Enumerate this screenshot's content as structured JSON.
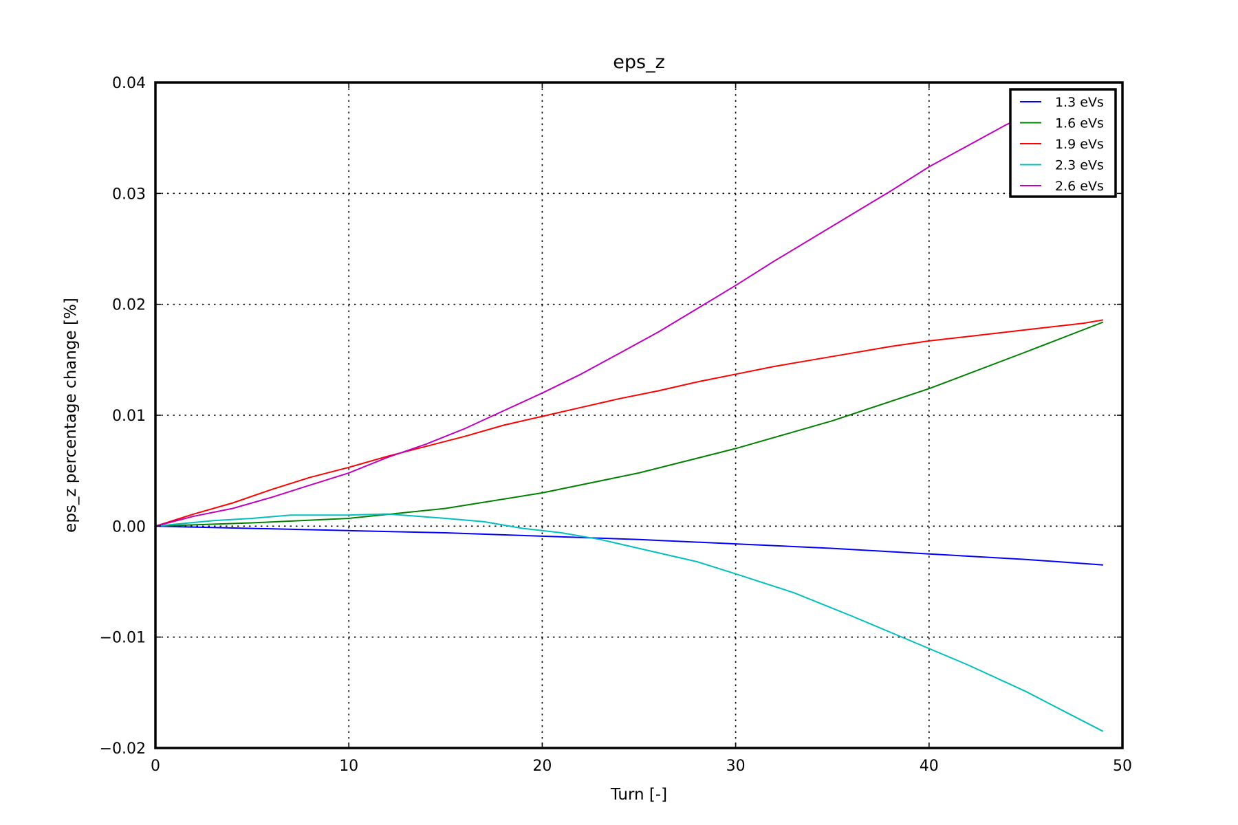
{
  "chart_data": {
    "type": "line",
    "title": "eps_z",
    "xlabel": "Turn [-]",
    "ylabel": "eps_z percentage change [%]",
    "xlim": [
      0,
      50
    ],
    "ylim": [
      -0.02,
      0.04
    ],
    "xticks": [
      0,
      10,
      20,
      30,
      40,
      50
    ],
    "yticks": [
      -0.02,
      -0.01,
      0.0,
      0.01,
      0.02,
      0.03,
      0.04
    ],
    "xtick_labels": [
      "0",
      "10",
      "20",
      "30",
      "40",
      "50"
    ],
    "ytick_labels": [
      "−0.02",
      "−0.01",
      "0.00",
      "0.01",
      "0.02",
      "0.03",
      "0.04"
    ],
    "grid": true,
    "legend_position": "top-right",
    "series": [
      {
        "name": "1.3 eVs",
        "color": "#0000ff",
        "x": [
          0,
          5,
          10,
          15,
          20,
          25,
          30,
          35,
          40,
          45,
          49
        ],
        "y": [
          0,
          -0.0002,
          -0.0004,
          -0.0006,
          -0.0009,
          -0.0012,
          -0.0016,
          -0.002,
          -0.0025,
          -0.003,
          -0.0035
        ]
      },
      {
        "name": "1.6 eVs",
        "color": "#008000",
        "x": [
          0,
          5,
          10,
          15,
          20,
          25,
          30,
          35,
          40,
          45,
          49
        ],
        "y": [
          0,
          0.0003,
          0.0007,
          0.0016,
          0.003,
          0.0048,
          0.007,
          0.0095,
          0.0124,
          0.0157,
          0.0184
        ]
      },
      {
        "name": "1.9 eVs",
        "color": "#ff0000",
        "x": [
          0,
          2,
          4,
          6,
          8,
          10,
          12,
          14,
          16,
          18,
          20,
          22,
          24,
          26,
          28,
          30,
          32,
          34,
          36,
          38,
          40,
          42,
          44,
          46,
          48,
          49
        ],
        "y": [
          0,
          0.0011,
          0.0021,
          0.0033,
          0.0044,
          0.0053,
          0.0063,
          0.0072,
          0.0081,
          0.0091,
          0.0099,
          0.0107,
          0.0115,
          0.0122,
          0.013,
          0.0137,
          0.0144,
          0.015,
          0.0156,
          0.0162,
          0.0167,
          0.0171,
          0.0175,
          0.0179,
          0.0183,
          0.0186
        ]
      },
      {
        "name": "2.3 eVs",
        "color": "#00bfbf",
        "x": [
          0,
          3,
          5,
          7,
          10,
          12,
          15,
          17,
          19,
          21,
          23,
          25,
          28,
          30,
          33,
          36,
          39,
          42,
          45,
          47,
          49
        ],
        "y": [
          0,
          0.0005,
          0.0007,
          0.001,
          0.001,
          0.0011,
          0.0007,
          0.0004,
          -0.0002,
          -0.0006,
          -0.0012,
          -0.002,
          -0.0032,
          -0.0043,
          -0.006,
          -0.0081,
          -0.0103,
          -0.0125,
          -0.0149,
          -0.0167,
          -0.0185
        ]
      },
      {
        "name": "2.6 eVs",
        "color": "#bf00bf",
        "x": [
          0,
          2,
          4,
          6,
          8,
          10,
          12,
          14,
          16,
          18,
          20,
          22,
          24,
          26,
          28,
          30,
          32,
          34,
          36,
          38,
          40,
          42,
          44,
          45
        ],
        "y": [
          0,
          0.0009,
          0.0016,
          0.0026,
          0.0037,
          0.0048,
          0.0062,
          0.0074,
          0.0088,
          0.0104,
          0.012,
          0.0137,
          0.0156,
          0.0175,
          0.0196,
          0.0217,
          0.0239,
          0.026,
          0.0281,
          0.0302,
          0.0324,
          0.0343,
          0.0362,
          0.037
        ]
      }
    ]
  }
}
